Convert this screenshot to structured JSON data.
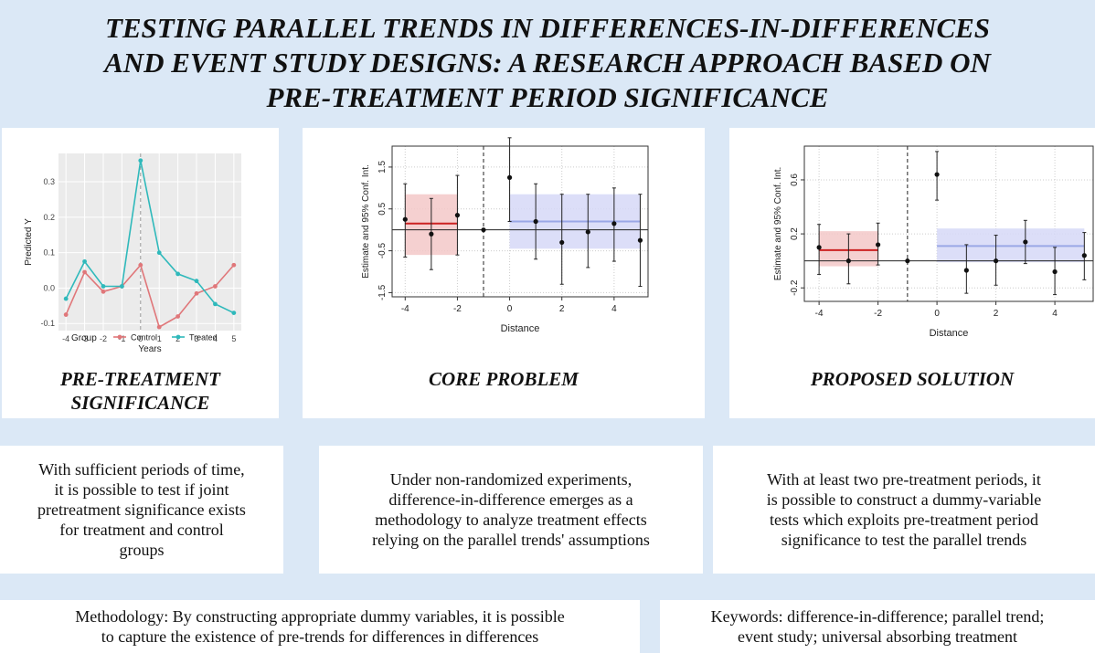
{
  "title": {
    "line1": "TESTING PARALLEL TRENDS IN DIFFERENCES-IN-DIFFERENCES",
    "line2": "AND EVENT STUDY DESIGNS: A RESEARCH APPROACH BASED ON",
    "line3": "PRE-TREATMENT PERIOD SIGNIFICANCE"
  },
  "panels": {
    "left": {
      "title_line1": "PRE-TREATMENT",
      "title_line2": "SIGNIFICANCE"
    },
    "middle": {
      "title": "CORE PROBLEM"
    },
    "right": {
      "title": "PROPOSED SOLUTION"
    }
  },
  "texts": {
    "left": [
      "With sufficient periods of time,",
      "it is possible to test if joint",
      "pretreatment significance exists",
      "for treatment and control",
      "groups"
    ],
    "middle": [
      "Under non-randomized experiments,",
      "difference-in-difference emerges as a",
      "methodology to analyze treatment effects",
      "relying on the parallel trends' assumptions"
    ],
    "right": [
      "With at least two pre-treatment periods, it",
      "is possible to construct a dummy-variable",
      "tests which exploits pre-treatment period",
      "significance to test the parallel trends"
    ],
    "methodology": [
      "Methodology: By constructing appropriate dummy variables, it is possible",
      "to capture the existence of pre-trends for differences in differences"
    ],
    "keywords": [
      "Keywords: difference-in-difference; parallel trend;",
      "event study; universal absorbing treatment"
    ]
  },
  "chart_data": [
    {
      "type": "line",
      "xlabel": "Years",
      "ylabel": "Predicted Y",
      "x": [
        -4,
        -3,
        -2,
        -1,
        0,
        1,
        2,
        3,
        4,
        5
      ],
      "xticks": [
        "-4",
        "-3",
        "-2",
        "-1",
        "0",
        "1",
        "2",
        "3",
        "4",
        "5"
      ],
      "yticks": [
        "-0.1",
        "0.0",
        "0.1",
        "0.2",
        "0.3"
      ],
      "ylim": [
        -0.12,
        0.38
      ],
      "legend_title": "Group",
      "series": [
        {
          "name": "Control",
          "color": "#e0777a",
          "values": [
            -0.075,
            0.045,
            -0.01,
            0.005,
            0.065,
            -0.11,
            -0.08,
            -0.015,
            0.005,
            0.065
          ]
        },
        {
          "name": "Treated",
          "color": "#2fb9bb",
          "values": [
            -0.03,
            0.075,
            0.005,
            0.005,
            0.36,
            0.1,
            0.04,
            0.02,
            -0.045,
            -0.07
          ]
        }
      ],
      "vline_x": 0,
      "grid": true
    },
    {
      "type": "scatter",
      "xlabel": "Distance",
      "ylabel": "Estimate and 95% Conf. Int.",
      "xticks": [
        "-4",
        "-2",
        "0",
        "2",
        "4"
      ],
      "yticks": [
        "-1.5",
        "-0.5",
        "0.5",
        "1.5"
      ],
      "ylim": [
        -1.6,
        2.0
      ],
      "xlim": [
        -4.5,
        5.3
      ],
      "points": [
        {
          "x": -4,
          "y": 0.25,
          "lo": -0.65,
          "hi": 1.1
        },
        {
          "x": -3,
          "y": -0.1,
          "lo": -0.95,
          "hi": 0.75
        },
        {
          "x": -2,
          "y": 0.35,
          "lo": -0.6,
          "hi": 1.3
        },
        {
          "x": -1,
          "y": 0.0,
          "lo": 0.0,
          "hi": 0.0
        },
        {
          "x": 0,
          "y": 1.25,
          "lo": 0.2,
          "hi": 2.2
        },
        {
          "x": 1,
          "y": 0.2,
          "lo": -0.7,
          "hi": 1.1
        },
        {
          "x": 2,
          "y": -0.3,
          "lo": -1.3,
          "hi": 0.85
        },
        {
          "x": 3,
          "y": -0.05,
          "lo": -0.9,
          "hi": 0.85
        },
        {
          "x": 4,
          "y": 0.15,
          "lo": -0.75,
          "hi": 1.0
        },
        {
          "x": 5,
          "y": -0.25,
          "lo": -1.35,
          "hi": 0.85
        }
      ],
      "pre_band": {
        "x": [
          -4,
          -2
        ],
        "lo": -0.6,
        "hi": 0.85,
        "mean": 0.15,
        "color": "#f3c8c8",
        "line_color": "#cc2222"
      },
      "post_band": {
        "x": [
          0,
          5
        ],
        "lo": -0.45,
        "hi": 0.85,
        "mean": 0.2,
        "color": "#d6d8f7",
        "line_color": "#9aa7e6"
      },
      "vline_x": -1,
      "grid": true
    },
    {
      "type": "scatter",
      "xlabel": "Distance",
      "ylabel": "Estimate and 95% Conf. Int.",
      "xticks": [
        "-4",
        "-2",
        "0",
        "2",
        "4"
      ],
      "yticks": [
        "-0.2",
        "0.2",
        "0.6"
      ],
      "ylim": [
        -0.3,
        0.85
      ],
      "xlim": [
        -4.5,
        5.3
      ],
      "points": [
        {
          "x": -4,
          "y": 0.1,
          "lo": -0.1,
          "hi": 0.27
        },
        {
          "x": -3,
          "y": 0.0,
          "lo": -0.17,
          "hi": 0.2
        },
        {
          "x": -2,
          "y": 0.12,
          "lo": -0.03,
          "hi": 0.28
        },
        {
          "x": -1,
          "y": 0.0,
          "lo": 0.0,
          "hi": 0.0
        },
        {
          "x": 0,
          "y": 0.64,
          "lo": 0.45,
          "hi": 0.81
        },
        {
          "x": 1,
          "y": -0.07,
          "lo": -0.24,
          "hi": 0.12
        },
        {
          "x": 2,
          "y": 0.0,
          "lo": -0.18,
          "hi": 0.19
        },
        {
          "x": 3,
          "y": 0.14,
          "lo": -0.02,
          "hi": 0.3
        },
        {
          "x": 4,
          "y": -0.08,
          "lo": -0.25,
          "hi": 0.1
        },
        {
          "x": 5,
          "y": 0.04,
          "lo": -0.14,
          "hi": 0.21
        }
      ],
      "pre_band": {
        "x": [
          -4,
          -2
        ],
        "lo": -0.04,
        "hi": 0.22,
        "mean": 0.08,
        "color": "#f3c8c8",
        "line_color": "#cc2222"
      },
      "post_band": {
        "x": [
          0,
          5
        ],
        "lo": -0.01,
        "hi": 0.24,
        "mean": 0.11,
        "color": "#d6d8f7",
        "line_color": "#9aa7e6"
      },
      "vline_x": -1,
      "grid": true
    }
  ]
}
